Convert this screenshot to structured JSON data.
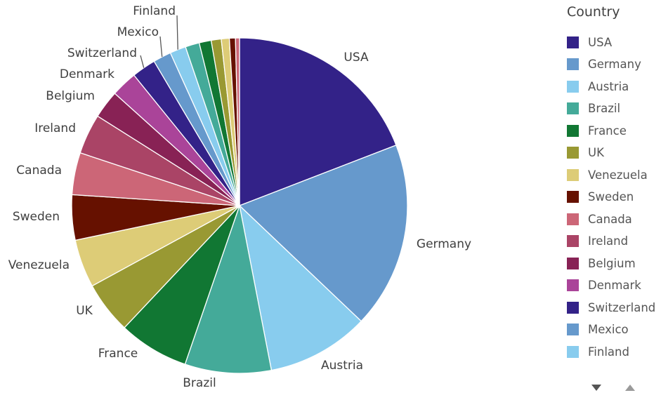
{
  "chart_data": {
    "type": "pie",
    "legend_title": "Country",
    "legend_placement": "right",
    "slices": [
      {
        "label": "USA",
        "value": 19.8,
        "color": "#332288"
      },
      {
        "label": "Germany",
        "value": 18.6,
        "color": "#6699cc"
      },
      {
        "label": "Austria",
        "value": 10.2,
        "color": "#88ccee"
      },
      {
        "label": "Brazil",
        "value": 8.6,
        "color": "#44aa99"
      },
      {
        "label": "France",
        "value": 7.0,
        "color": "#117733"
      },
      {
        "label": "UK",
        "value": 5.2,
        "color": "#999933"
      },
      {
        "label": "Venezuela",
        "value": 4.8,
        "color": "#ddcc77"
      },
      {
        "label": "Sweden",
        "value": 4.5,
        "color": "#661100"
      },
      {
        "label": "Canada",
        "value": 4.2,
        "color": "#cc6677"
      },
      {
        "label": "Ireland",
        "value": 4.0,
        "color": "#aa4466"
      },
      {
        "label": "Belgium",
        "value": 2.8,
        "color": "#882255"
      },
      {
        "label": "Denmark",
        "value": 2.6,
        "color": "#aa4499"
      },
      {
        "label": "Switzerland",
        "value": 2.4,
        "color": "#332288"
      },
      {
        "label": "Mexico",
        "value": 1.8,
        "color": "#6699cc"
      },
      {
        "label": "Finland",
        "value": 1.6,
        "color": "#88ccee"
      },
      {
        "label": "",
        "value": 1.4,
        "color": "#44aa99"
      },
      {
        "label": "",
        "value": 1.2,
        "color": "#117733"
      },
      {
        "label": "",
        "value": 1.0,
        "color": "#999933"
      },
      {
        "label": "",
        "value": 0.8,
        "color": "#ddcc77"
      },
      {
        "label": "",
        "value": 0.6,
        "color": "#661100"
      },
      {
        "label": "",
        "value": 0.4,
        "color": "#cc6677"
      }
    ]
  },
  "legend": {
    "title": "Country",
    "items": [
      {
        "label": "USA",
        "color": "#332288"
      },
      {
        "label": "Germany",
        "color": "#6699cc"
      },
      {
        "label": "Austria",
        "color": "#88ccee"
      },
      {
        "label": "Brazil",
        "color": "#44aa99"
      },
      {
        "label": "France",
        "color": "#117733"
      },
      {
        "label": "UK",
        "color": "#999933"
      },
      {
        "label": "Venezuela",
        "color": "#ddcc77"
      },
      {
        "label": "Sweden",
        "color": "#661100"
      },
      {
        "label": "Canada",
        "color": "#cc6677"
      },
      {
        "label": "Ireland",
        "color": "#aa4466"
      },
      {
        "label": "Belgium",
        "color": "#882255"
      },
      {
        "label": "Denmark",
        "color": "#aa4499"
      },
      {
        "label": "Switzerland",
        "color": "#332288"
      },
      {
        "label": "Mexico",
        "color": "#6699cc"
      },
      {
        "label": "Finland",
        "color": "#88ccee"
      }
    ],
    "scroll_down_icon": "triangle-down",
    "scroll_up_icon": "triangle-up"
  }
}
